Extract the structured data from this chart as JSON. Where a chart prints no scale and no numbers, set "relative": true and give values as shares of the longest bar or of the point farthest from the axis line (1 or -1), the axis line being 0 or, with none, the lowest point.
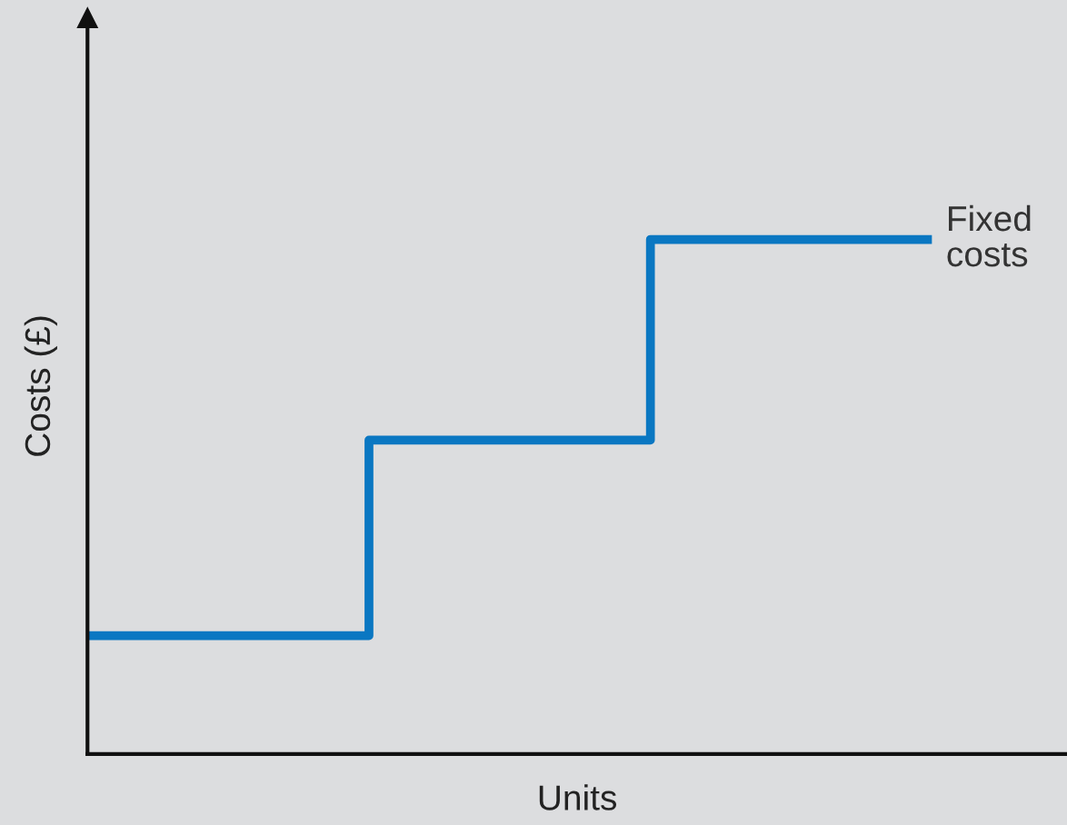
{
  "chart_data": {
    "type": "step",
    "relative": true,
    "xlabel": "Units",
    "ylabel": "Costs (£)",
    "categories": [
      null,
      null,
      null,
      null
    ],
    "series": [
      {
        "name": "Fixed costs",
        "color": "#0a77c2",
        "values": [
          0.23,
          0.61,
          1,
          1
        ]
      }
    ],
    "tick_labels": false,
    "grid": false,
    "legend": false
  }
}
